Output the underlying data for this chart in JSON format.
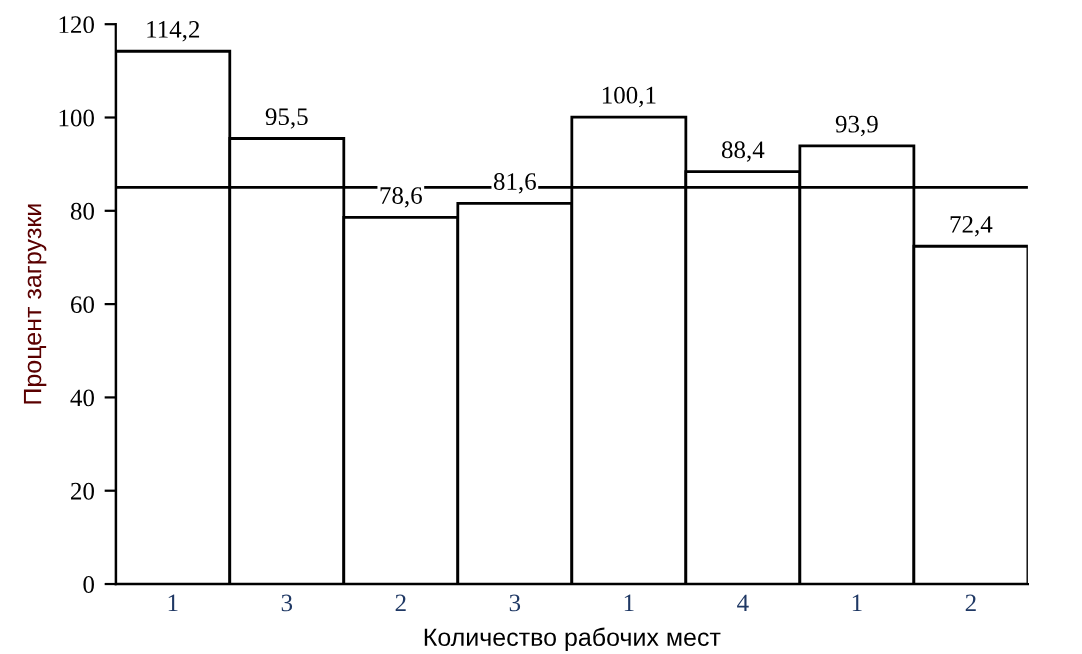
{
  "chart_data": {
    "type": "bar",
    "xlabel": "Количество рабочих мест",
    "ylabel": "Процент загрузки",
    "categories": [
      "1",
      "3",
      "2",
      "3",
      "1",
      "4",
      "1",
      "2"
    ],
    "values": [
      114.2,
      95.5,
      78.6,
      81.6,
      100.1,
      88.4,
      93.9,
      72.4
    ],
    "value_labels": [
      "114,2",
      "95,5",
      "78,6",
      "81,6",
      "100,1",
      "88,4",
      "93,9",
      "72,4"
    ],
    "color": "#ffffff",
    "ylim": [
      0,
      120
    ],
    "yticks": [
      0,
      20,
      40,
      60,
      80,
      100,
      120
    ],
    "ref_lines": [
      {
        "axis": "y",
        "value": 85,
        "label": null,
        "color": "#000000"
      }
    ],
    "grid": false,
    "legend": false
  }
}
